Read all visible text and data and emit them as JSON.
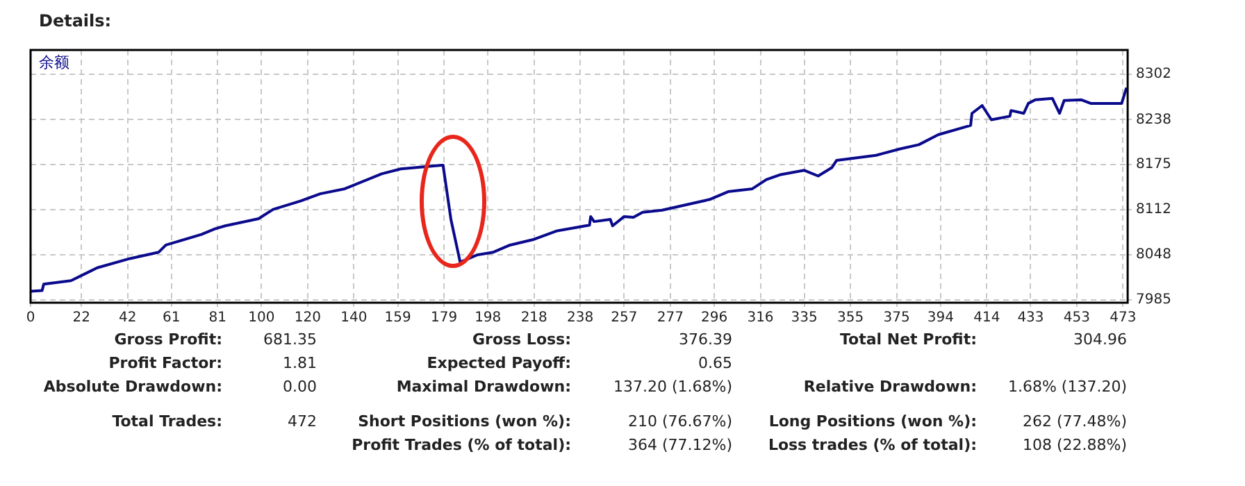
{
  "chart_data": {
    "type": "line",
    "title": "Details:",
    "x": [
      0,
      5,
      5.7,
      17.5,
      25.7,
      28.8,
      43,
      55.5,
      58.6,
      74,
      80,
      84.3,
      98.7,
      105,
      117,
      125.4,
      136,
      152,
      160.3,
      178,
      178.6,
      182,
      186,
      193.2,
      200.4,
      207.6,
      218,
      228,
      242,
      242.5,
      244,
      251,
      252,
      257,
      261,
      265,
      273.4,
      294,
      302,
      312.5,
      318.6,
      324.8,
      335,
      341,
      347,
      349,
      366,
      376.4,
      384.6,
      393,
      407,
      407.6,
      412,
      416,
      424,
      424.5,
      430,
      432,
      435,
      442.4,
      445.5,
      447.5,
      455,
      459,
      472.4,
      474.5
    ],
    "series": [
      {
        "name": "余额",
        "color": "#0a0a8c",
        "values": [
          7997,
          7998,
          8007,
          8012,
          8025,
          8030,
          8043,
          8052,
          8062,
          8077,
          8085,
          8089,
          8099,
          8112,
          8124,
          8134,
          8141,
          8162,
          8169,
          8174,
          8174,
          8098,
          8038,
          8048,
          8052,
          8062,
          8070,
          8082,
          8090,
          8102,
          8095,
          8098,
          8089,
          8102,
          8101,
          8108,
          8111,
          8126,
          8137,
          8141,
          8154,
          8161,
          8167,
          8159,
          8171,
          8181,
          8188,
          8197,
          8203,
          8217,
          8230,
          8247,
          8258,
          8238,
          8243,
          8251,
          8247,
          8261,
          8266,
          8268,
          8247,
          8265,
          8266,
          8261,
          8261,
          8283
        ]
      }
    ],
    "xlim": [
      0,
      475
    ],
    "xticks": [
      0,
      22,
      42,
      61,
      81,
      100,
      120,
      140,
      159,
      179,
      198,
      218,
      238,
      257,
      277,
      296,
      316,
      335,
      355,
      375,
      394,
      414,
      433,
      453,
      473
    ],
    "ylim": [
      7981,
      8336
    ],
    "yticks": [
      7985,
      8048,
      8112,
      8175,
      8238,
      8302
    ],
    "grid": true,
    "legend": "top left",
    "marker": "none",
    "line_style": "solid",
    "annotations": [
      "Gross Profit:",
      "681.35",
      "Gross Loss:",
      "376.39",
      "Total Net Profit:",
      "304.96",
      "Profit Factor:",
      "1.81",
      "Expected Payoff:",
      "0.65",
      "Absolute Drawdown:",
      "0.00",
      "Maximal Drawdown:",
      "137.20 (1.68%)",
      "Relative Drawdown:",
      "1.68% (137.20)",
      "Total Trades:",
      "472",
      "Short Positions (won %):",
      "210 (76.67%)",
      "Long Positions (won %):",
      "262 (77.48%)",
      "Profit Trades (% of total):",
      "364 (77.12%)",
      "Loss trades (% of total):",
      "108 (22.88%)"
    ]
  }
}
